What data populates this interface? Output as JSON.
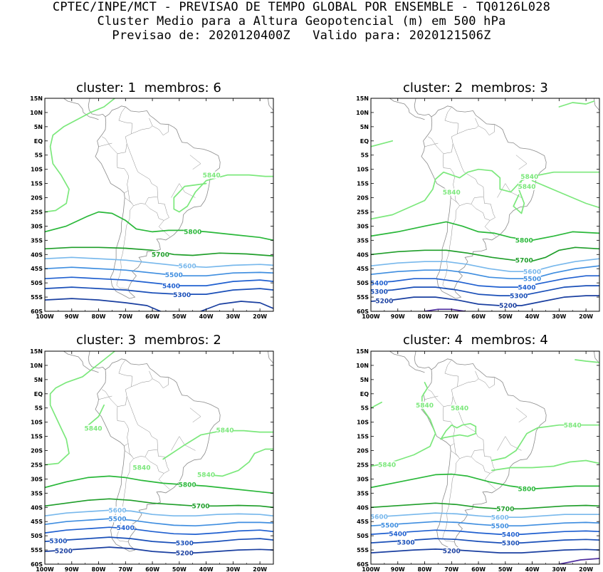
{
  "header": {
    "line1": "CPTEC/INPE/MCT - PREVISAO DE TEMPO GLOBAL POR ENSEMBLE - TQ0126L028",
    "line2": "Cluster Medio para a Altura Geopotencial (m) em 500 hPa",
    "line3": "Previsao de: 2020120400Z   Valido para: 2020121506Z"
  },
  "lat_ticks": [
    "15N",
    "10N",
    "5N",
    "EQ",
    "5S",
    "10S",
    "15S",
    "20S",
    "25S",
    "30S",
    "35S",
    "40S",
    "45S",
    "50S",
    "55S",
    "60S"
  ],
  "lon_ticks": [
    "100W",
    "90W",
    "80W",
    "70W",
    "60W",
    "50W",
    "40W",
    "30W",
    "20W"
  ],
  "colors": {
    "c5840": "#7ce87c",
    "c5800": "#2ab83a",
    "c5700": "#1f9e2a",
    "c5600": "#78b8ec",
    "c5500": "#3f8ee0",
    "c5400": "#2060d0",
    "c5300": "#1a4fb8",
    "c5200": "#1a3fa0",
    "c5100": "#5030a0",
    "coast": "#8a8a8a"
  },
  "panels": [
    {
      "title": "cluster: 1  membros: 6",
      "contours": [
        {
          "level": "5840",
          "labels": [
            "5840"
          ]
        },
        {
          "level": "5800",
          "labels": [
            "5800"
          ]
        },
        {
          "level": "5700",
          "labels": [
            "5700"
          ]
        },
        {
          "level": "5600",
          "labels": [
            "5600"
          ]
        },
        {
          "level": "5500",
          "labels": [
            "5500"
          ]
        },
        {
          "level": "5400",
          "labels": [
            "5400"
          ]
        },
        {
          "level": "5300",
          "labels": [
            "5300"
          ]
        }
      ]
    },
    {
      "title": "cluster: 2  membros: 3",
      "contours": [
        {
          "level": "5840",
          "labels": [
            "5840",
            "5840",
            "5840"
          ]
        },
        {
          "level": "5800",
          "labels": [
            "5800"
          ]
        },
        {
          "level": "5700",
          "labels": [
            "5700"
          ]
        },
        {
          "level": "5600",
          "labels": [
            "5600"
          ]
        },
        {
          "level": "5500",
          "labels": [
            "5500"
          ]
        },
        {
          "level": "5400",
          "labels": [
            "5400",
            "5400"
          ]
        },
        {
          "level": "5300",
          "labels": [
            "5300",
            "5300"
          ]
        },
        {
          "level": "5200",
          "labels": [
            "5200",
            "5200"
          ]
        }
      ]
    },
    {
      "title": "cluster: 3  membros: 2",
      "contours": [
        {
          "level": "5840",
          "labels": [
            "5840",
            "5840",
            "5840",
            "5840"
          ]
        },
        {
          "level": "5800",
          "labels": [
            "5800"
          ]
        },
        {
          "level": "5700",
          "labels": [
            "5700"
          ]
        },
        {
          "level": "5600",
          "labels": [
            "5600"
          ]
        },
        {
          "level": "5500",
          "labels": [
            "5500"
          ]
        },
        {
          "level": "5400",
          "labels": [
            "5400"
          ]
        },
        {
          "level": "5300",
          "labels": [
            "5300",
            "5300"
          ]
        },
        {
          "level": "5200",
          "labels": [
            "5200",
            "5200"
          ]
        }
      ]
    },
    {
      "title": "cluster: 4  membros: 4",
      "contours": [
        {
          "level": "5840",
          "labels": [
            "5840",
            "5840",
            "5840",
            "5840"
          ]
        },
        {
          "level": "5800",
          "labels": [
            "5800"
          ]
        },
        {
          "level": "5700",
          "labels": [
            "5700"
          ]
        },
        {
          "level": "5600",
          "labels": [
            "5600",
            "5600"
          ]
        },
        {
          "level": "5500",
          "labels": [
            "5500",
            "5500"
          ]
        },
        {
          "level": "5400",
          "labels": [
            "5400",
            "5400"
          ]
        },
        {
          "level": "5300",
          "labels": [
            "5300",
            "5300"
          ]
        },
        {
          "level": "5200",
          "labels": [
            "5200"
          ]
        }
      ]
    }
  ]
}
